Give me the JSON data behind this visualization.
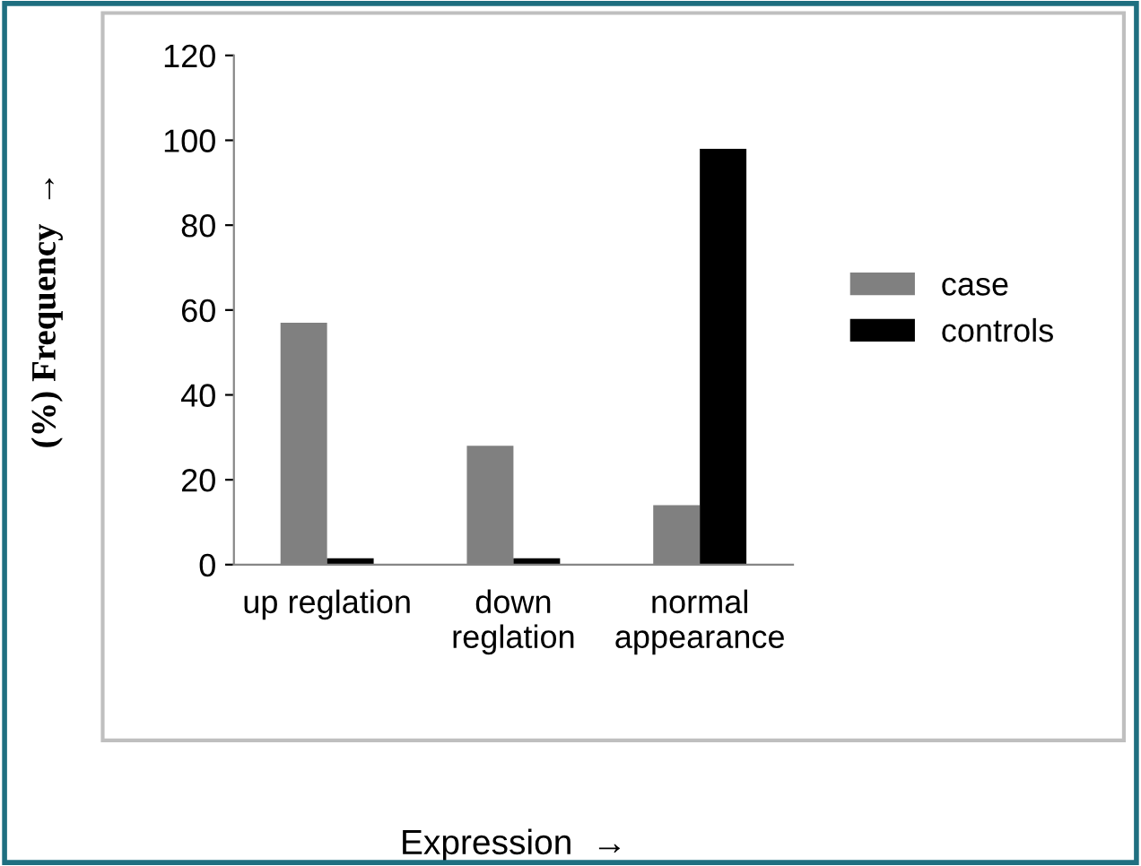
{
  "chart_data": {
    "type": "bar",
    "xlabel": "Expression  →",
    "ylabel": "(%) Frequency  →",
    "categories": [
      "up reglation",
      "down\nreglation",
      "normal\nappearance"
    ],
    "series": [
      {
        "name": "case",
        "color": "#808080",
        "values": [
          57,
          28,
          14
        ]
      },
      {
        "name": "controls",
        "color": "#000000",
        "values": [
          1.5,
          1.5,
          98
        ]
      }
    ],
    "ylim": [
      0,
      120
    ],
    "yticks": [
      0,
      20,
      40,
      60,
      80,
      100,
      120
    ],
    "grid": false,
    "legend": "right"
  }
}
